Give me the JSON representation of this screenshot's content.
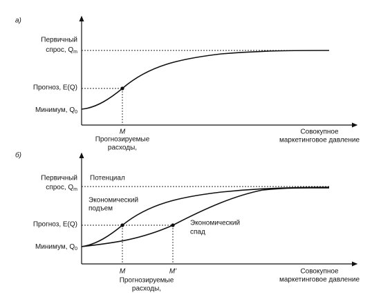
{
  "panels": [
    {
      "label": "а)",
      "y_labels": {
        "primary_line1": "Первичный",
        "primary_line2": "спрос, Q",
        "primary_sub": "m",
        "forecast": "Прогноз, E(Q)",
        "minimum": "Минимум, Q",
        "minimum_sub": "0"
      },
      "x_labels": {
        "m": "M",
        "planned_line1": "Прогнозируемые",
        "planned_line2": "расходы,",
        "axis_line1": "Совокупное",
        "axis_line2": "маркетинговое давление"
      }
    },
    {
      "label": "б)",
      "y_labels": {
        "primary_line1": "Первичный",
        "primary_line2": "спрос, Q",
        "primary_sub": "m",
        "forecast": "Прогноз, E(Q)",
        "minimum": "Минимум, Q",
        "minimum_sub": "0"
      },
      "annotations": {
        "potential": "Потенциал",
        "boom_line1": "Экономический",
        "boom_line2": "подъем",
        "recession_line1": "Экономический",
        "recession_line2": "спад"
      },
      "x_labels": {
        "m": "M",
        "m_prime": "M'",
        "planned_line1": "Прогнозируемые",
        "planned_line2": "расходы,",
        "axis_line1": "Совокупное",
        "axis_line2": "маркетинговое давление"
      }
    }
  ]
}
